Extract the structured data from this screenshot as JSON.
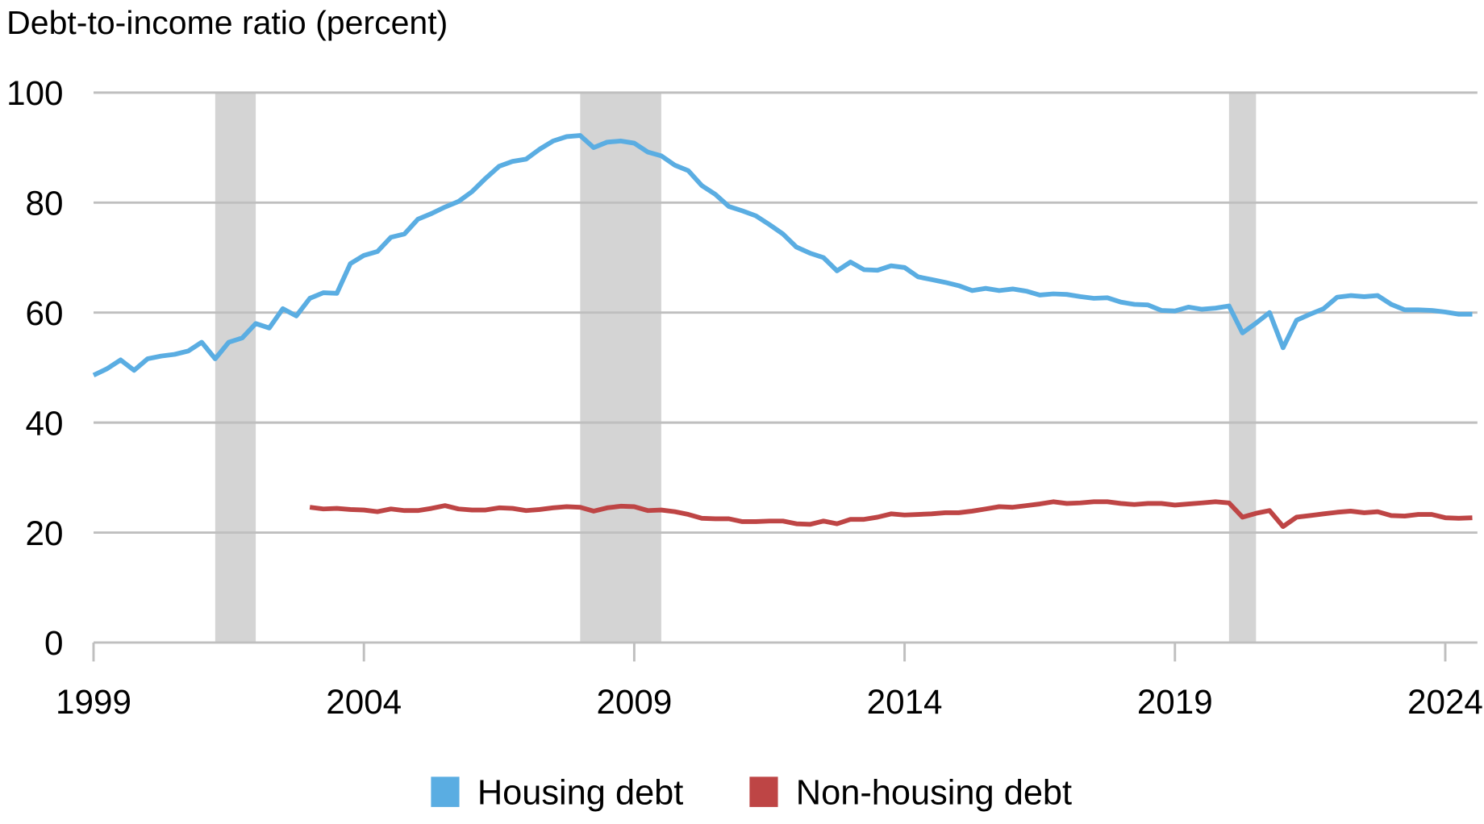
{
  "chart_data": {
    "type": "line",
    "title": "Debt-to-income ratio (percent)",
    "xlabel": "",
    "ylabel": "",
    "xlim": [
      1999,
      2024.5
    ],
    "ylim": [
      0,
      100
    ],
    "y_ticks": [
      0,
      20,
      40,
      60,
      80,
      100
    ],
    "x_ticks": [
      1999,
      2004,
      2009,
      2014,
      2019,
      2024
    ],
    "grid": "horizontal",
    "legend_placement": "bottom",
    "frequency": "quarterly",
    "recessions": [
      {
        "start": "2001Q2",
        "end": "2001Q4"
      },
      {
        "start": "2008Q1",
        "end": "2009Q2"
      },
      {
        "start": "2020Q1",
        "end": "2020Q2"
      }
    ],
    "recession_color": "#d4d4d4",
    "series": [
      {
        "name": "Housing debt",
        "color": "#5aade2",
        "start": "1999Q1",
        "values": [
          48.6,
          49.8,
          51.4,
          49.5,
          51.6,
          52.1,
          52.4,
          53.0,
          54.6,
          51.6,
          54.6,
          55.4,
          58.0,
          57.2,
          60.7,
          59.4,
          62.6,
          63.6,
          63.5,
          68.9,
          70.4,
          71.1,
          73.7,
          74.3,
          77.0,
          78.0,
          79.2,
          80.2,
          82.0,
          84.4,
          86.6,
          87.5,
          87.9,
          89.7,
          91.2,
          92.0,
          92.2,
          90.0,
          91.0,
          91.2,
          90.8,
          89.2,
          88.5,
          86.8,
          85.8,
          83.1,
          81.5,
          79.3,
          78.5,
          77.6,
          76.0,
          74.3,
          71.9,
          70.8,
          70.0,
          67.6,
          69.2,
          67.8,
          67.7,
          68.5,
          68.2,
          66.5,
          66.0,
          65.5,
          64.9,
          64.0,
          64.4,
          64.0,
          64.3,
          63.9,
          63.2,
          63.4,
          63.3,
          62.9,
          62.6,
          62.7,
          61.9,
          61.5,
          61.4,
          60.4,
          60.3,
          61.0,
          60.6,
          60.8,
          61.2,
          56.3,
          58.1,
          60.0,
          53.6,
          58.6,
          59.7,
          60.7,
          62.8,
          63.1,
          62.9,
          63.1,
          61.5,
          60.5,
          60.5,
          60.4,
          60.1,
          59.7,
          59.7
        ]
      },
      {
        "name": "Non-housing debt",
        "color": "#be4545",
        "start": "2003Q1",
        "values": [
          24.6,
          24.3,
          24.4,
          24.2,
          24.1,
          23.8,
          24.3,
          24.0,
          24.0,
          24.4,
          24.9,
          24.3,
          24.1,
          24.1,
          24.5,
          24.4,
          24.0,
          24.2,
          24.5,
          24.7,
          24.6,
          23.9,
          24.5,
          24.8,
          24.7,
          24.0,
          24.1,
          23.8,
          23.3,
          22.6,
          22.5,
          22.5,
          22.0,
          22.0,
          22.1,
          22.1,
          21.6,
          21.5,
          22.1,
          21.6,
          22.4,
          22.4,
          22.8,
          23.4,
          23.2,
          23.3,
          23.4,
          23.6,
          23.6,
          23.9,
          24.3,
          24.7,
          24.6,
          24.9,
          25.2,
          25.6,
          25.3,
          25.4,
          25.6,
          25.6,
          25.3,
          25.1,
          25.3,
          25.3,
          25.0,
          25.2,
          25.4,
          25.6,
          25.4,
          22.8,
          23.5,
          24.0,
          21.1,
          22.8,
          23.1,
          23.4,
          23.7,
          23.9,
          23.6,
          23.8,
          23.1,
          23.0,
          23.3,
          23.3,
          22.7,
          22.6,
          22.7
        ]
      }
    ]
  }
}
